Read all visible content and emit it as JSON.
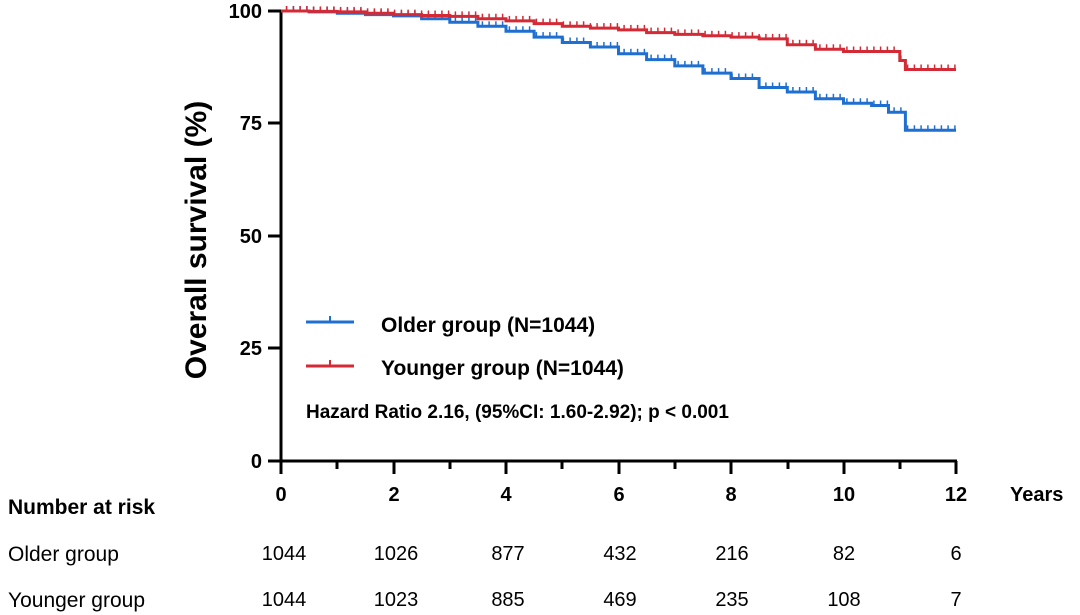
{
  "chart_data": {
    "type": "line",
    "title": "",
    "xlabel": "Years",
    "ylabel": "Overall survival (%)",
    "xlim": [
      0,
      12
    ],
    "ylim": [
      0,
      100
    ],
    "x_ticks": [
      "0",
      "2",
      "4",
      "6",
      "8",
      "10",
      "12"
    ],
    "y_ticks": [
      "0",
      "25",
      "50",
      "75",
      "100"
    ],
    "grid": false,
    "legend_position": "center-left",
    "annotation": "Hazard Ratio 2.16, (95%CI: 1.60-2.92); p < 0.001",
    "series": [
      {
        "name": "Older group (N=1044)",
        "color": "#1f6fd1",
        "x": [
          0,
          0.5,
          1.0,
          1.5,
          2.0,
          2.5,
          3.0,
          3.5,
          4.0,
          4.5,
          5.0,
          5.5,
          6.0,
          6.5,
          7.0,
          7.5,
          8.0,
          8.5,
          9.0,
          9.5,
          10.0,
          10.5,
          10.8,
          11.0,
          11.1,
          11.5,
          12.0
        ],
        "values": [
          100,
          99.8,
          99.5,
          99.2,
          98.9,
          98.3,
          97.5,
          96.6,
          95.5,
          94.2,
          93.0,
          92.0,
          90.5,
          89.2,
          87.8,
          86.2,
          85.0,
          83.0,
          82.0,
          80.5,
          79.5,
          79.0,
          77.5,
          77.5,
          73.5,
          73.5,
          73.5
        ]
      },
      {
        "name": "Younger group (N=1044)",
        "color": "#d42a35",
        "x": [
          0,
          0.5,
          1.0,
          1.5,
          2.0,
          2.5,
          3.0,
          3.5,
          4.0,
          4.5,
          5.0,
          5.5,
          6.0,
          6.5,
          7.0,
          7.5,
          8.0,
          8.5,
          9.0,
          9.5,
          10.0,
          10.5,
          11.0,
          11.1,
          12.0
        ],
        "values": [
          100,
          99.9,
          99.8,
          99.5,
          99.2,
          99.0,
          98.8,
          98.3,
          97.8,
          97.2,
          96.6,
          96.2,
          95.8,
          95.2,
          94.8,
          94.5,
          94.2,
          93.8,
          92.5,
          91.5,
          91.0,
          91.0,
          89.0,
          87.0,
          87.0
        ]
      }
    ]
  },
  "risk_table": {
    "title": "Number at risk",
    "rows": [
      {
        "label": "Older group",
        "values": [
          "1044",
          "1026",
          "877",
          "432",
          "216",
          "82",
          "6"
        ]
      },
      {
        "label": "Younger group",
        "values": [
          "1044",
          "1023",
          "885",
          "469",
          "235",
          "108",
          "7"
        ]
      }
    ]
  }
}
